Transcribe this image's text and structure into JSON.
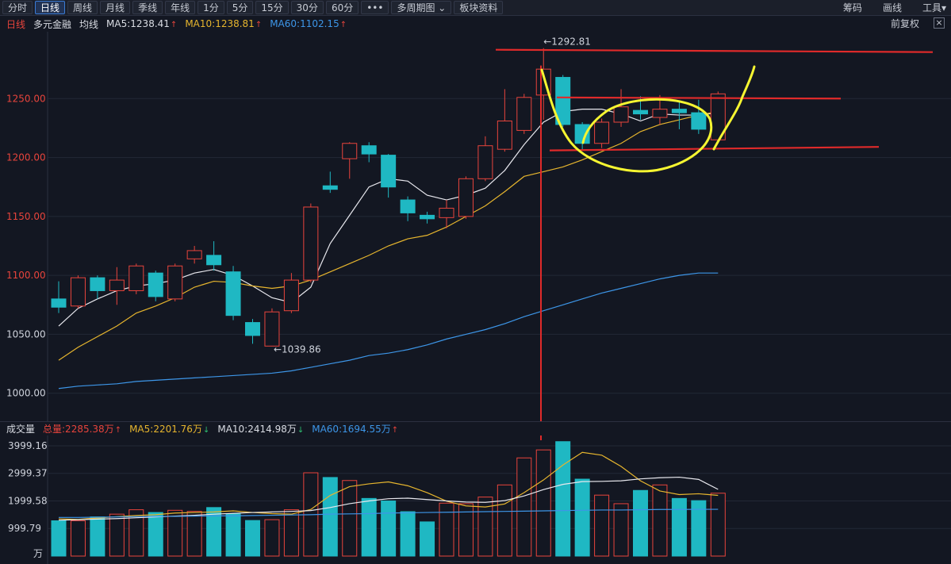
{
  "toolbar": {
    "tabs": [
      "分时",
      "日线",
      "周线",
      "月线",
      "季线",
      "年线",
      "1分",
      "5分",
      "15分",
      "30分",
      "60分"
    ],
    "active_tab": "日线",
    "more_label": "•••",
    "multi_period_label": "多周期图",
    "sector_label": "板块资料",
    "right_items": [
      "筹码",
      "画线",
      "工具"
    ]
  },
  "info": {
    "period": "日线",
    "name": "多元金融",
    "avg_label": "均线",
    "ma5": "MA5:1238.41",
    "ma10": "MA10:1238.81",
    "ma60": "MA60:1102.15",
    "adjust": "前复权",
    "close": "×"
  },
  "volume_info": {
    "label": "成交量",
    "total": "总量:2285.38万",
    "ma5": "MA5:2201.76万",
    "ma10": "MA10:2414.98万",
    "ma60": "MA60:1694.55万"
  },
  "colors": {
    "up": "#e8443c",
    "down": "#1fb8c3",
    "ma5": "#e8e8ee",
    "ma10": "#e6b52e",
    "ma60": "#3d96e8",
    "annotation": "#f5f531"
  },
  "chart_data": [
    {
      "type": "candlestick",
      "title": "",
      "y_ticks": [
        "1250.00",
        "1200.00",
        "1150.00",
        "1100.00",
        "1050.00",
        "1000.00"
      ],
      "ylim": [
        985,
        1300
      ],
      "annotations": {
        "high_label": "←1292.81",
        "low_label": "←1039.86"
      },
      "candles": [
        {
          "o": 1080,
          "c": 1073,
          "h": 1095,
          "l": 1068
        },
        {
          "o": 1074,
          "c": 1098,
          "h": 1100,
          "l": 1072
        },
        {
          "o": 1098,
          "c": 1087,
          "h": 1100,
          "l": 1080
        },
        {
          "o": 1087,
          "c": 1096,
          "h": 1107,
          "l": 1075
        },
        {
          "o": 1087,
          "c": 1108,
          "h": 1110,
          "l": 1084
        },
        {
          "o": 1102,
          "c": 1082,
          "h": 1104,
          "l": 1078
        },
        {
          "o": 1080,
          "c": 1108,
          "h": 1110,
          "l": 1078
        },
        {
          "o": 1114,
          "c": 1121,
          "h": 1125,
          "l": 1110
        },
        {
          "o": 1117,
          "c": 1109,
          "h": 1129,
          "l": 1104
        },
        {
          "o": 1103,
          "c": 1066,
          "h": 1108,
          "l": 1062
        },
        {
          "o": 1060,
          "c": 1049,
          "h": 1063,
          "l": 1042
        },
        {
          "o": 1040,
          "c": 1069,
          "h": 1072,
          "l": 1039.86
        },
        {
          "o": 1070,
          "c": 1096,
          "h": 1102,
          "l": 1068
        },
        {
          "o": 1096,
          "c": 1158,
          "h": 1161,
          "l": 1094
        },
        {
          "o": 1176,
          "c": 1173,
          "h": 1188,
          "l": 1170
        },
        {
          "o": 1199,
          "c": 1212,
          "h": 1213,
          "l": 1182
        },
        {
          "o": 1210,
          "c": 1203,
          "h": 1213,
          "l": 1196
        },
        {
          "o": 1202,
          "c": 1175,
          "h": 1203,
          "l": 1166
        },
        {
          "o": 1164,
          "c": 1153,
          "h": 1167,
          "l": 1146
        },
        {
          "o": 1151,
          "c": 1148,
          "h": 1154,
          "l": 1144
        },
        {
          "o": 1149,
          "c": 1157,
          "h": 1164,
          "l": 1140
        },
        {
          "o": 1150,
          "c": 1182,
          "h": 1184,
          "l": 1148
        },
        {
          "o": 1182,
          "c": 1210,
          "h": 1218,
          "l": 1180
        },
        {
          "o": 1207,
          "c": 1231,
          "h": 1258,
          "l": 1205
        },
        {
          "o": 1223,
          "c": 1251,
          "h": 1254,
          "l": 1220
        },
        {
          "o": 1253,
          "c": 1275,
          "h": 1292.81,
          "l": 1232
        },
        {
          "o": 1268,
          "c": 1228,
          "h": 1270,
          "l": 1226
        },
        {
          "o": 1228,
          "c": 1212,
          "h": 1230,
          "l": 1206
        },
        {
          "o": 1212,
          "c": 1230,
          "h": 1233,
          "l": 1208
        },
        {
          "o": 1230,
          "c": 1243,
          "h": 1258,
          "l": 1226
        },
        {
          "o": 1240,
          "c": 1237,
          "h": 1252,
          "l": 1232
        },
        {
          "o": 1234,
          "c": 1241,
          "h": 1253,
          "l": 1228
        },
        {
          "o": 1241,
          "c": 1238,
          "h": 1248,
          "l": 1224
        },
        {
          "o": 1238,
          "c": 1224,
          "h": 1249,
          "l": 1220
        },
        {
          "o": 1215,
          "c": 1254,
          "h": 1256,
          "l": 1212
        }
      ],
      "series": [
        {
          "name": "MA5",
          "values": [
            1057,
            1072,
            1080,
            1087,
            1091,
            1093,
            1096,
            1102,
            1105,
            1100,
            1091,
            1081,
            1077,
            1090,
            1127,
            1151,
            1175,
            1182,
            1180,
            1168,
            1164,
            1168,
            1174,
            1189,
            1211,
            1230,
            1239,
            1241,
            1241,
            1237,
            1231,
            1237,
            1236,
            1236,
            1238
          ]
        },
        {
          "name": "MA10",
          "values": [
            1028,
            1039,
            1048,
            1057,
            1068,
            1074,
            1081,
            1090,
            1095,
            1094,
            1091,
            1089,
            1091,
            1096,
            1103,
            1110,
            1117,
            1125,
            1131,
            1134,
            1141,
            1150,
            1159,
            1171,
            1184,
            1188,
            1192,
            1198,
            1205,
            1212,
            1222,
            1228,
            1232,
            1236,
            1239
          ]
        },
        {
          "name": "MA60",
          "values": [
            1004,
            1006,
            1007,
            1008,
            1010,
            1011,
            1012,
            1013,
            1014,
            1015,
            1016,
            1017,
            1019,
            1022,
            1025,
            1028,
            1032,
            1034,
            1037,
            1041,
            1046,
            1050,
            1054,
            1059,
            1065,
            1070,
            1075,
            1080,
            1085,
            1089,
            1093,
            1097,
            1100,
            1102,
            1102
          ]
        }
      ]
    },
    {
      "type": "bar",
      "title": "",
      "y_ticks": [
        "3999.16",
        "2999.37",
        "1999.58",
        "999.79",
        "万"
      ],
      "ylim": [
        0,
        4200
      ],
      "values": [
        1280,
        1280,
        1420,
        1520,
        1680,
        1580,
        1660,
        1620,
        1760,
        1530,
        1290,
        1320,
        1680,
        3020,
        2850,
        2740,
        2090,
        2000,
        1610,
        1240,
        1920,
        1900,
        2140,
        2580,
        3560,
        3850,
        4150,
        2790,
        2210,
        1900,
        2380,
        2580,
        2090,
        2010,
        2280
      ],
      "series": [
        {
          "name": "MA5",
          "values": [
            1350,
            1330,
            1380,
            1430,
            1470,
            1500,
            1560,
            1580,
            1600,
            1640,
            1580,
            1540,
            1520,
            1690,
            2200,
            2520,
            2620,
            2690,
            2550,
            2300,
            1990,
            1820,
            1780,
            1890,
            2300,
            2760,
            3300,
            3760,
            3660,
            3250,
            2730,
            2360,
            2230,
            2260,
            2200
          ]
        },
        {
          "name": "MA10",
          "values": [
            1300,
            1320,
            1340,
            1360,
            1390,
            1420,
            1450,
            1480,
            1520,
            1550,
            1580,
            1600,
            1620,
            1650,
            1760,
            1900,
            2000,
            2080,
            2100,
            2050,
            2000,
            1960,
            1950,
            2010,
            2180,
            2410,
            2600,
            2700,
            2710,
            2730,
            2800,
            2840,
            2860,
            2780,
            2420
          ]
        },
        {
          "name": "MA60",
          "values": [
            1400,
            1400,
            1410,
            1420,
            1430,
            1440,
            1440,
            1450,
            1460,
            1460,
            1470,
            1480,
            1490,
            1500,
            1520,
            1530,
            1540,
            1560,
            1570,
            1580,
            1590,
            1600,
            1610,
            1620,
            1630,
            1640,
            1650,
            1660,
            1670,
            1670,
            1680,
            1690,
            1690,
            1695,
            1695
          ]
        }
      ]
    }
  ]
}
